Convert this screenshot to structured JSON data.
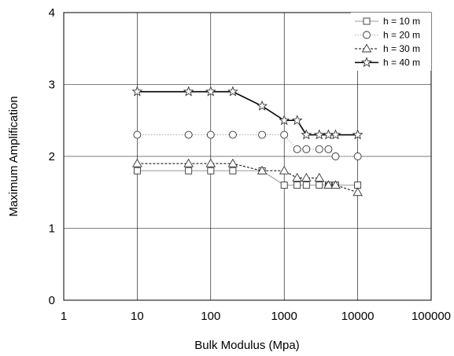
{
  "chart_data": {
    "type": "line",
    "xlabel": "Bulk Modulus (Mpa)",
    "ylabel": "Maximum Amplification",
    "x_scale": "log",
    "xlim": [
      1,
      100000
    ],
    "ylim": [
      0,
      4
    ],
    "x_ticks": [
      1,
      10,
      100,
      1000,
      10000,
      100000
    ],
    "x_tick_labels": [
      "1",
      "10",
      "100",
      "1000",
      "10000",
      "100000"
    ],
    "y_ticks": [
      0,
      1,
      2,
      3,
      4
    ],
    "y_tick_labels": [
      "0",
      "1",
      "2",
      "3",
      "4"
    ],
    "grid": true,
    "legend_position": "top-right",
    "series": [
      {
        "name": "h = 10 m",
        "marker": "square",
        "line_style": "solid",
        "color": "#999999",
        "x": [
          10,
          50,
          100,
          200,
          500,
          1000,
          1500,
          2000,
          3000,
          4000,
          5000,
          10000
        ],
        "y": [
          1.8,
          1.8,
          1.8,
          1.8,
          1.8,
          1.6,
          1.6,
          1.6,
          1.6,
          1.6,
          1.6,
          1.6
        ]
      },
      {
        "name": "h = 20 m",
        "marker": "circle",
        "line_style": "dotted",
        "color": "#aaaaaa",
        "x": [
          10,
          50,
          100,
          200,
          500,
          1000,
          1500,
          2000,
          3000,
          4000,
          5000,
          10000
        ],
        "y": [
          2.3,
          2.3,
          2.3,
          2.3,
          2.3,
          2.3,
          2.1,
          2.1,
          2.1,
          2.1,
          2.0,
          2.0
        ]
      },
      {
        "name": "h = 30 m",
        "marker": "triangle",
        "line_style": "dashed",
        "color": "#000000",
        "x": [
          10,
          50,
          100,
          200,
          500,
          1000,
          1500,
          2000,
          3000,
          4000,
          5000,
          10000
        ],
        "y": [
          1.9,
          1.9,
          1.9,
          1.9,
          1.8,
          1.8,
          1.7,
          1.7,
          1.7,
          1.6,
          1.6,
          1.5
        ]
      },
      {
        "name": "h = 40 m",
        "marker": "star",
        "line_style": "solid",
        "color": "#000000",
        "x": [
          10,
          50,
          100,
          200,
          500,
          1000,
          1500,
          2000,
          3000,
          4000,
          5000,
          10000
        ],
        "y": [
          2.9,
          2.9,
          2.9,
          2.9,
          2.7,
          2.5,
          2.5,
          2.3,
          2.3,
          2.3,
          2.3,
          2.3
        ]
      }
    ]
  }
}
